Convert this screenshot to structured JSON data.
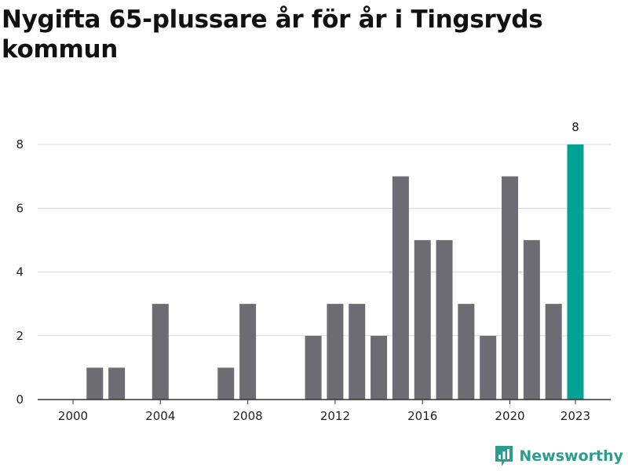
{
  "chart_data": {
    "type": "bar",
    "title": "Nygifta 65-plussare år för år i Tingsryds kommun",
    "xlabel": "",
    "ylabel": "",
    "categories": [
      "2000",
      "2001",
      "2002",
      "2003",
      "2004",
      "2005",
      "2006",
      "2007",
      "2008",
      "2009",
      "2010",
      "2011",
      "2012",
      "2013",
      "2014",
      "2015",
      "2016",
      "2017",
      "2018",
      "2019",
      "2020",
      "2021",
      "2022",
      "2023"
    ],
    "values": [
      0,
      1,
      1,
      0,
      3,
      0,
      0,
      1,
      3,
      0,
      0,
      2,
      3,
      3,
      2,
      7,
      5,
      5,
      3,
      2,
      7,
      5,
      3,
      8
    ],
    "ylim": [
      0,
      8
    ],
    "yticks": [
      0,
      2,
      4,
      6,
      8
    ],
    "xticks": [
      "2000",
      "2004",
      "2008",
      "2012",
      "2016",
      "2020",
      "2023"
    ],
    "grid": true,
    "highlight": {
      "category": "2023",
      "label": "8"
    },
    "colors": {
      "bar": "#6d6c72",
      "highlight": "#00a393",
      "grid": "#d9d9d9",
      "axis": "#333333"
    }
  },
  "brand": {
    "name": "Newsworthy",
    "icon": "bar-chart-logo-icon",
    "color": "#2a9d8f"
  }
}
